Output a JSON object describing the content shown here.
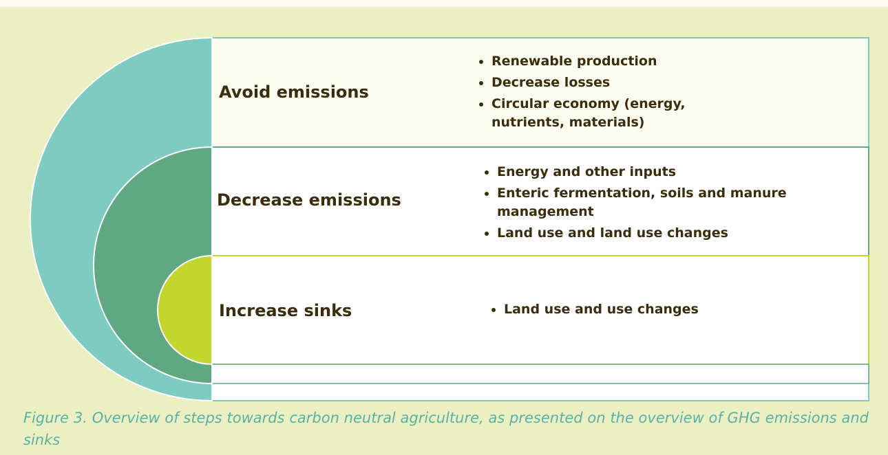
{
  "sections": [
    {
      "label": "Avoid emissions",
      "bullets": [
        "Renewable production",
        "Decrease losses",
        "Circular economy (energy, nutrients, materials)"
      ]
    },
    {
      "label": "Decrease emissions",
      "bullets": [
        "Energy and other inputs",
        "Enteric fermentation, soils and manure management",
        "Land use and land use changes"
      ]
    },
    {
      "label": "Increase sinks",
      "bullets": [
        "Land use and use changes"
      ]
    }
  ],
  "caption": "Figure 3. Overview of steps towards carbon neutral agriculture, as presented on the overview of GHG emissions and sinks"
}
